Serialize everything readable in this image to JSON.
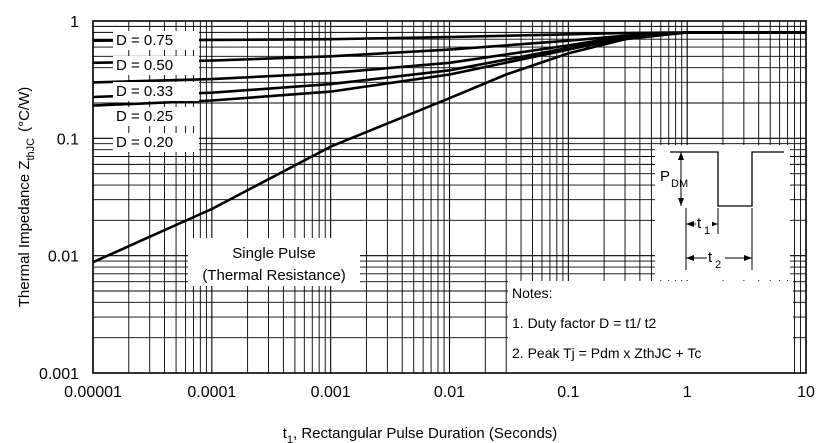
{
  "chart_data": {
    "type": "line",
    "x_scale": "log",
    "y_scale": "log",
    "xlim": [
      1e-05,
      10
    ],
    "ylim": [
      0.001,
      1
    ],
    "grid": true,
    "x_ticks": [
      "0.00001",
      "0.0001",
      "0.001",
      "0.01",
      "0.1",
      "1",
      "10"
    ],
    "y_ticks": [
      "0.001",
      "0.01",
      "0.1",
      "1"
    ],
    "xlabel": {
      "prefix": "t",
      "sub": "1",
      "rest": ", Rectangular Pulse Duration (Seconds)"
    },
    "ylabel": {
      "main": "Thermal Impedance Z",
      "sub": "thJC",
      "unit": "(°C/W)"
    },
    "series": [
      {
        "name": "D = 0.75",
        "x": [
          1e-05,
          0.0001,
          0.001,
          0.01,
          0.1,
          0.3,
          1,
          10
        ],
        "y": [
          0.68,
          0.69,
          0.7,
          0.73,
          0.77,
          0.79,
          0.8,
          0.8
        ]
      },
      {
        "name": "D = 0.50",
        "x": [
          1e-05,
          0.0001,
          0.001,
          0.01,
          0.1,
          0.3,
          1,
          10
        ],
        "y": [
          0.44,
          0.46,
          0.5,
          0.57,
          0.68,
          0.75,
          0.8,
          0.8
        ]
      },
      {
        "name": "D = 0.33",
        "x": [
          1e-05,
          0.0001,
          0.001,
          0.01,
          0.1,
          0.3,
          1,
          10
        ],
        "y": [
          0.3,
          0.32,
          0.36,
          0.44,
          0.62,
          0.74,
          0.8,
          0.8
        ]
      },
      {
        "name": "D = 0.25",
        "x": [
          1e-05,
          0.0001,
          0.001,
          0.01,
          0.1,
          0.3,
          1,
          10
        ],
        "y": [
          0.225,
          0.245,
          0.29,
          0.38,
          0.59,
          0.73,
          0.8,
          0.8
        ]
      },
      {
        "name": "D = 0.20",
        "x": [
          1e-05,
          0.0001,
          0.001,
          0.01,
          0.1,
          0.3,
          1,
          10
        ],
        "y": [
          0.19,
          0.21,
          0.25,
          0.35,
          0.57,
          0.72,
          0.8,
          0.8
        ]
      },
      {
        "name": "Single Pulse",
        "x": [
          1e-05,
          0.0001,
          0.001,
          0.01,
          0.03,
          0.1,
          0.3,
          1,
          10
        ],
        "y": [
          0.0088,
          0.025,
          0.085,
          0.22,
          0.35,
          0.53,
          0.7,
          0.8,
          0.8
        ]
      }
    ],
    "annotations": {
      "single_pulse": [
        "Single Pulse",
        "(Thermal Resistance)"
      ],
      "notes": [
        "Notes:",
        "1. Duty factor D =  t1/ t2",
        "2. Peak Tj = Pdm x ZthJC + Tc"
      ],
      "waveform": {
        "pdm_main": "P",
        "pdm_sub": "DM",
        "t1_main": "t",
        "t1_sub": "1",
        "t2_main": "t",
        "t2_sub": "2"
      }
    }
  }
}
